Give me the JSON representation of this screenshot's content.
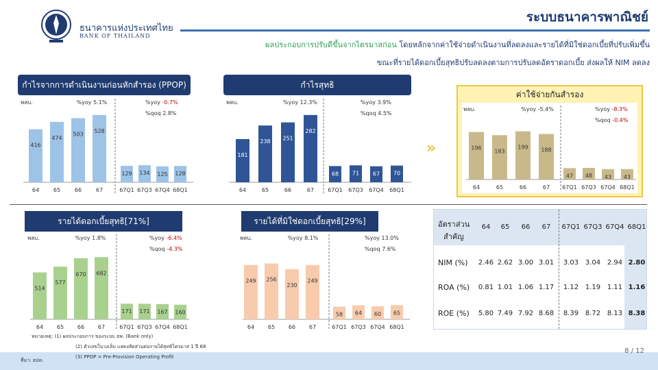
{
  "header": {
    "bank_name_th": "ธนาคารแห่งประเทศไทย",
    "bank_name_en": "BANK OF THAILAND",
    "title": "ระบบธนาคารพาณิชย์",
    "subtitle_highlight": "ผลประกอบการปรับดีขึ้นจากไตรมาสก่อน",
    "subtitle_rest": " โดยหลักจากค่าใช้จ่ายดำเนินงานที่ลดลงและรายได้ที่มิใช่ดอกเบี้ยที่ปรับเพิ่มขึ้น",
    "subtitle_line2": "ขณะที่รายได้ดอกเบี้ยสุทธิปรับลดลงตามการปรับลดอัตราดอกเบี้ย ส่งผลให้ NIM ลดลง"
  },
  "chart_data": [
    {
      "id": "ppop",
      "type": "bar",
      "title": "กำไรจากการดำเนินงานก่อนหักสำรอง (PPOP)",
      "unit": "พลบ.",
      "annual": {
        "categories": [
          "64",
          "65",
          "66",
          "67"
        ],
        "values": [
          416,
          474,
          503,
          528
        ],
        "color": "#9dc3e6",
        "label_color": "#333333"
      },
      "quarterly": {
        "categories": [
          "67Q1",
          "67Q3",
          "67Q4",
          "68Q1"
        ],
        "values": [
          129,
          134,
          125,
          128
        ],
        "color": "#9dc3e6",
        "label_color": "#333333"
      },
      "yoy_annual": "%yoy 5.1%",
      "yoy_label": "%yoy",
      "yoy_value": "-0.7%",
      "qoq_label": "%qoq",
      "qoq_value": "2.8%"
    },
    {
      "id": "np",
      "type": "bar",
      "title": "กำไรสุทธิ",
      "unit": "พลบ.",
      "annual": {
        "categories": [
          "64",
          "65",
          "66",
          "67"
        ],
        "values": [
          181,
          238,
          251,
          282
        ],
        "color": "#2f5597",
        "label_color": "#ffffff"
      },
      "quarterly": {
        "categories": [
          "67Q1",
          "67Q3",
          "67Q4",
          "68Q1"
        ],
        "values": [
          68,
          71,
          67,
          70
        ],
        "color": "#2f5597",
        "label_color": "#ffffff"
      },
      "yoy_annual": "%yoy 12.3%",
      "yoy_label": "%yoy",
      "yoy_value": "3.9%",
      "qoq_label": "%qoq",
      "qoq_value": "4.5%"
    },
    {
      "id": "lp",
      "type": "bar",
      "title": "ค่าใช้จ่ายกันสำรอง",
      "unit": "พลบ.",
      "annual": {
        "categories": [
          "64",
          "65",
          "66",
          "67"
        ],
        "values": [
          196,
          183,
          199,
          188
        ],
        "color": "#c9b98a",
        "label_color": "#333333"
      },
      "quarterly": {
        "categories": [
          "67Q1",
          "67Q3",
          "67Q4",
          "68Q1"
        ],
        "values": [
          47,
          48,
          43,
          43
        ],
        "color": "#c9b98a",
        "label_color": "#333333"
      },
      "yoy_annual": "%yoy -5.4%",
      "yoy_label": "%yoy",
      "yoy_value": "-8.3%",
      "qoq_label": "%qoq",
      "qoq_value": "-0.4%"
    },
    {
      "id": "nii",
      "type": "bar",
      "title": "รายได้ดอกเบี้ยสุทธิ[71%]",
      "unit": "พลบ.",
      "annual": {
        "categories": [
          "64",
          "65",
          "66",
          "67"
        ],
        "values": [
          514,
          577,
          670,
          682
        ],
        "color": "#a9d18e",
        "label_color": "#333333"
      },
      "quarterly": {
        "categories": [
          "67Q1",
          "67Q3",
          "67Q4",
          "68Q1"
        ],
        "values": [
          171,
          171,
          167,
          160
        ],
        "color": "#a9d18e",
        "label_color": "#333333"
      },
      "yoy_annual": "%yoy 1.8%",
      "yoy_label": "%yoy",
      "yoy_value": "-6.4%",
      "qoq_label": "%qoq",
      "qoq_value": "-4.3%"
    },
    {
      "id": "nnii",
      "type": "bar",
      "title": "รายได้ที่มิใช่ดอกเบี้ยสุทธิ[29%]",
      "unit": "พลบ.",
      "annual": {
        "categories": [
          "64",
          "65",
          "66",
          "67"
        ],
        "values": [
          249,
          256,
          230,
          249
        ],
        "color": "#f8cbad",
        "label_color": "#333333"
      },
      "quarterly": {
        "categories": [
          "67Q1",
          "67Q3",
          "67Q4",
          "68Q1"
        ],
        "values": [
          58,
          64,
          60,
          65
        ],
        "color": "#f8cbad",
        "label_color": "#333333"
      },
      "yoy_annual": "%yoy 8.1%",
      "yoy_label": "%yoy",
      "yoy_value": "13.0%",
      "qoq_label": "%qoq",
      "qoq_value": "7.6%"
    },
    {
      "id": "ratios",
      "type": "table",
      "header_label_1": "อัตราส่วน",
      "header_label_2": "สำคัญ",
      "columns": [
        "64",
        "65",
        "66",
        "67",
        "67Q1",
        "67Q3",
        "67Q4",
        "68Q1"
      ],
      "rows": [
        {
          "label": "NIM (%)",
          "values": [
            "2.46",
            "2.62",
            "3.00",
            "3.01",
            "3.03",
            "3.04",
            "2.94",
            "2.80"
          ]
        },
        {
          "label": "ROA (%)",
          "values": [
            "0.81",
            "1.01",
            "1.06",
            "1.17",
            "1.12",
            "1.19",
            "1.11",
            "1.16"
          ]
        },
        {
          "label": "ROE (%)",
          "values": [
            "5.80",
            "7.49",
            "7.92",
            "8.68",
            "8.39",
            "8.72",
            "8.13",
            "8.38"
          ]
        }
      ]
    }
  ],
  "colors": {
    "negative": "#c00000",
    "positive": "#333333",
    "navy": "#1f3b70"
  },
  "footnotes": {
    "line1": "หมายเหตุ: (1) ผลประกอบการ ของระบบ ธพ. (Bank only)",
    "line2": "(2) ตัวเลขในวงเล็บ แสดงสัดส่วนต่อรายได้สุทธิไตรมาส 1 ปี 68",
    "line3": "(3) PPOP = Pre-Provision Operating Profit",
    "source": "ที่มา: ธปท."
  },
  "page_number": "8 / 12"
}
